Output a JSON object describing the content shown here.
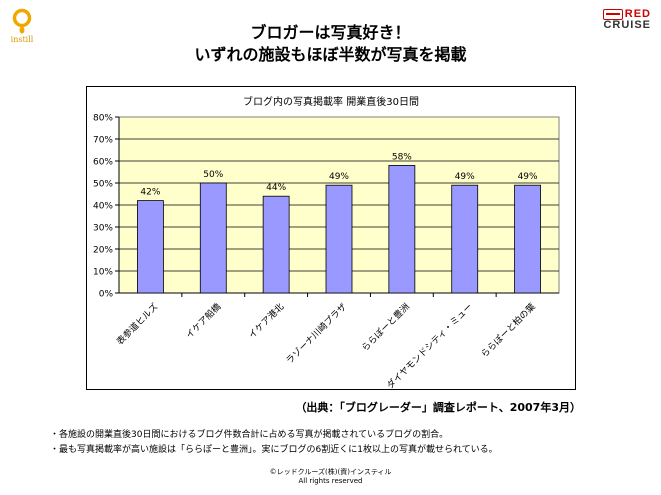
{
  "header": {
    "title_line1": "ブロガーは写真好き！",
    "title_line2": "いずれの施設もほぼ半数が写真を掲載"
  },
  "logos": {
    "left_text": "instill",
    "right_line1_red": "RED",
    "right_line2": "CRUISE",
    "colors": {
      "instill": "#f0a800",
      "red_cruise": "#cc0000"
    }
  },
  "chart_data": {
    "type": "bar",
    "title": "ブログ内の写真掲載率  開業直後30日間",
    "categories": [
      "表参道ヒルズ",
      "イケア船橋",
      "イケア港北",
      "ラゾーナ川崎プラザ",
      "ららぽーと豊洲",
      "ダイヤモンドシティ・ミュー",
      "ららぽーと柏の葉"
    ],
    "values": [
      42,
      50,
      44,
      49,
      58,
      49,
      49
    ],
    "data_labels": [
      "42%",
      "50%",
      "44%",
      "49%",
      "58%",
      "49%",
      "49%"
    ],
    "ylim": [
      0,
      80
    ],
    "yticks": [
      "0%",
      "10%",
      "20%",
      "30%",
      "40%",
      "50%",
      "60%",
      "70%",
      "80%"
    ],
    "grid": true,
    "colors": {
      "bar": "#9999ff",
      "plot_bg": "#ffffcc",
      "gridline": "#000000"
    }
  },
  "source": "（出典：「ブログレーダー」調査レポート、2007年3月）",
  "notes": [
    "・各施設の開業直後30日間におけるブログ件数合計に占める写真が掲載されているブログの割合。",
    "・最も写真掲載率が高い施設は「ららぽーと豊洲」。実にブログの6割近くに1枚以上の写真が載せられている。"
  ],
  "footer": {
    "line1": "©レッドクルーズ(株)(資)インスティル",
    "line2": "All rights reserved"
  }
}
